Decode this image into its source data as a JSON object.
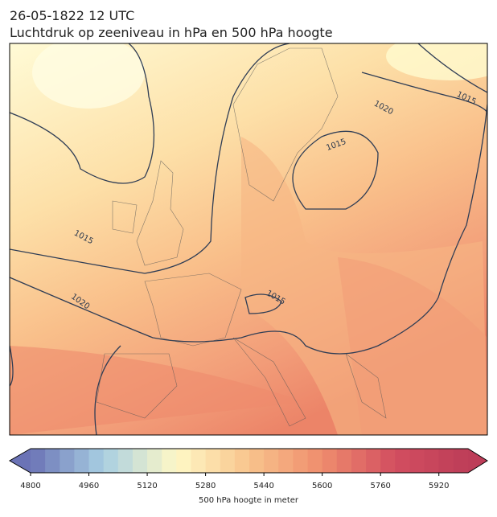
{
  "title": "26-05-1822 12 UTC",
  "subtitle": "Luchtdruk op zeeniveau in hPa en 500 hPa hoogte",
  "map": {
    "contour_labels": [
      "1015",
      "1020",
      "1015",
      "1015",
      "1020",
      "1015"
    ]
  },
  "colorbar": {
    "label": "500 hPa hoogte in meter",
    "range": [
      4800,
      6000
    ],
    "step": 40,
    "ticks": [
      4800,
      4960,
      5120,
      5280,
      5440,
      5600,
      5760,
      5920
    ],
    "colors": [
      "#6b73b6",
      "#a8cfe2",
      "#fff8c6",
      "#f8c48c",
      "#ef8c6d",
      "#d24e60",
      "#bd3d58"
    ]
  }
}
